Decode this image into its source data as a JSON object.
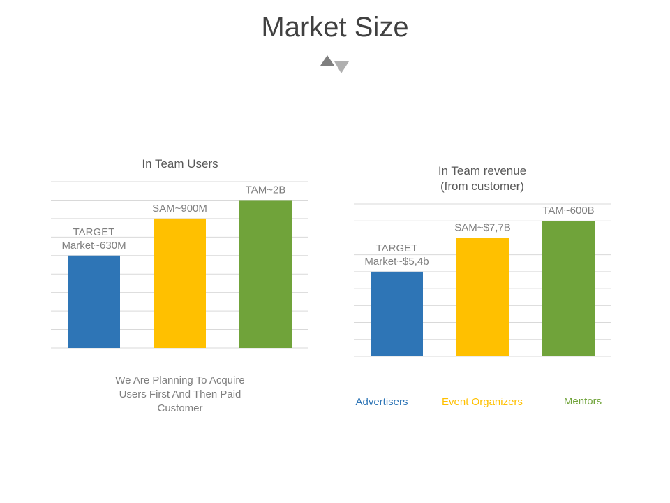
{
  "title": "Market Size",
  "icon": "up-down-triangles-icon",
  "colors": {
    "blue": "#2e75b6",
    "yellow": "#ffc000",
    "green": "#70a33a",
    "grid": "#d9d9d9",
    "text": "#7f7f7f",
    "title": "#404040"
  },
  "chart_data": [
    {
      "type": "bar",
      "title": "In Team Users",
      "categories": [
        "TARGET Market~630M",
        "SAM~900M",
        "TAM~2B"
      ],
      "data_labels": [
        [
          "TARGET",
          "Market~630M"
        ],
        [
          "SAM~900M"
        ],
        [
          "TAM~2B"
        ]
      ],
      "values": [
        5,
        7,
        8
      ],
      "ylim": [
        0,
        9
      ],
      "grid": true,
      "bar_colors": [
        "#2e75b6",
        "#ffc000",
        "#70a33a"
      ],
      "note": [
        "We Are Planning To Acquire",
        "Users First And Then Paid",
        "Customer"
      ]
    },
    {
      "type": "bar",
      "title": [
        "In Team revenue",
        "(from customer)"
      ],
      "categories": [
        "TARGET Market~$5,4b",
        "SAM~$7,7B",
        "TAM~600B"
      ],
      "data_labels": [
        [
          "TARGET",
          "Market~$5,4b"
        ],
        [
          "SAM~$7,7B"
        ],
        [
          "TAM~600B"
        ]
      ],
      "values": [
        5,
        7,
        8
      ],
      "ylim": [
        0,
        9
      ],
      "grid": true,
      "bar_colors": [
        "#2e75b6",
        "#ffc000",
        "#70a33a"
      ],
      "legend": [
        {
          "label": "Advertisers",
          "color": "#2e75b6"
        },
        {
          "label": "Event Organizers",
          "color": "#ffc000"
        },
        {
          "label": "Mentors",
          "color": "#70a33a"
        }
      ]
    }
  ]
}
